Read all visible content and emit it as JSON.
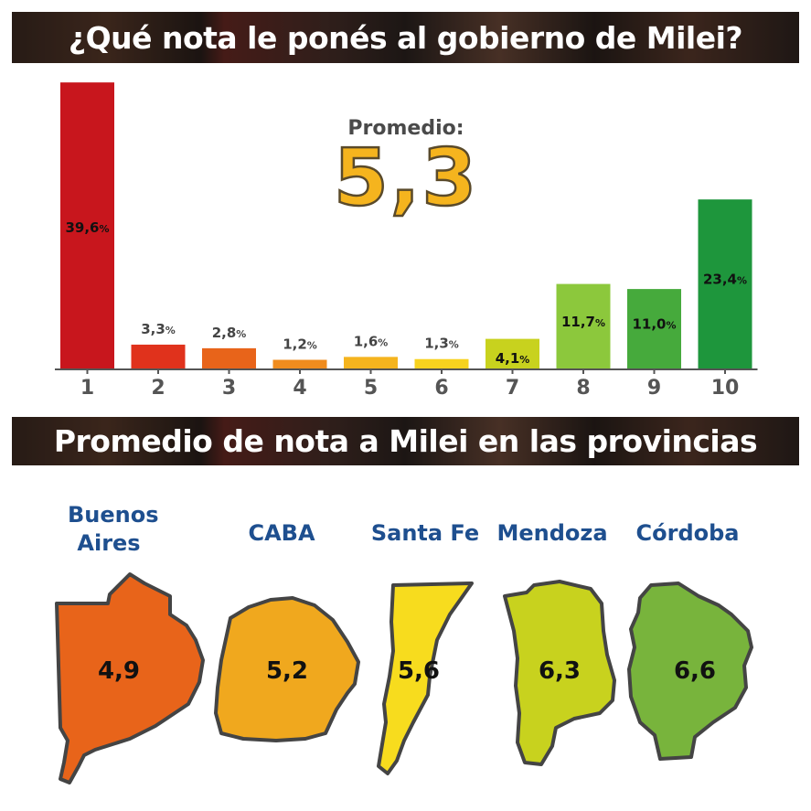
{
  "header1": {
    "title": "¿Qué nota le ponés al gobierno de Milei?"
  },
  "average": {
    "label": "Promedio:",
    "value": "5,3"
  },
  "chart_data": {
    "type": "bar",
    "title": "¿Qué nota le ponés al gobierno de Milei?",
    "categories": [
      "1",
      "2",
      "3",
      "4",
      "5",
      "6",
      "7",
      "8",
      "9",
      "10"
    ],
    "values": [
      39.6,
      3.3,
      2.8,
      1.2,
      1.6,
      1.3,
      4.1,
      11.7,
      11.0,
      23.4
    ],
    "value_labels": [
      "39,6",
      "3,3",
      "2,8",
      "1,2",
      "1,6",
      "1,3",
      "4,1",
      "11,7",
      "11,0",
      "23,4"
    ],
    "value_suffix": "%",
    "colors": [
      "#c8161d",
      "#e0321c",
      "#e8641a",
      "#f08c1e",
      "#f5b41e",
      "#f7d21e",
      "#c8d21e",
      "#8cc83c",
      "#46aa3c",
      "#1e963c"
    ],
    "ylim": [
      0,
      40
    ],
    "grid": false
  },
  "header2": {
    "title": "Promedio de nota a Milei en las provincias"
  },
  "provinces": [
    {
      "name": "Buenos Aires",
      "value": "4,9",
      "color": "#e8641a"
    },
    {
      "name": "CABA",
      "value": "5,2",
      "color": "#f0a81e"
    },
    {
      "name": "Santa Fe",
      "value": "5,6",
      "color": "#f7dc1e"
    },
    {
      "name": "Mendoza",
      "value": "6,3",
      "color": "#c8d21e"
    },
    {
      "name": "Córdoba",
      "value": "6,6",
      "color": "#78b43c"
    }
  ]
}
